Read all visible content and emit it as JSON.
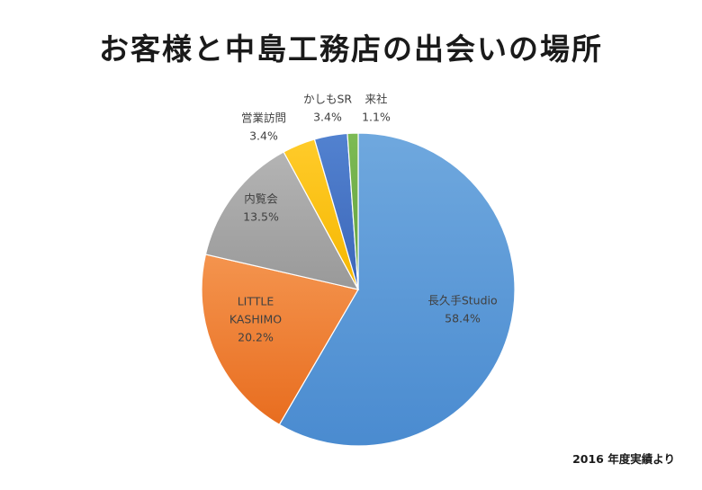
{
  "title": "お客様と中島工務店の出会いの場所",
  "footnote": "2016 年度実績より",
  "chart_data": {
    "type": "pie",
    "title": "お客様と中島工務店の出会いの場所",
    "slices": [
      {
        "label": "長久手Studio",
        "label_lines": [
          "長久手Studio"
        ],
        "value": 58.4,
        "percent": "58.4%",
        "color": "#5b9bd5"
      },
      {
        "label": "LITTLE KASHIMO",
        "label_lines": [
          "LITTLE",
          "KASHIMO"
        ],
        "value": 20.2,
        "percent": "20.2%",
        "color": "#ed7d31"
      },
      {
        "label": "内覧会",
        "label_lines": [
          "内覧会"
        ],
        "value": 13.5,
        "percent": "13.5%",
        "color": "#a5a5a5"
      },
      {
        "label": "営業訪問",
        "label_lines": [
          "営業訪問"
        ],
        "value": 3.4,
        "percent": "3.4%",
        "color": "#ffc000"
      },
      {
        "label": "かしもSR",
        "label_lines": [
          "かしもSR"
        ],
        "value": 3.4,
        "percent": "3.4%",
        "color": "#4472c4"
      },
      {
        "label": "来社",
        "label_lines": [
          "来社"
        ],
        "value": 1.1,
        "percent": "1.1%",
        "color": "#70ad47"
      }
    ],
    "start": "12 o'clock",
    "direction": "clockwise",
    "legend": "none"
  }
}
